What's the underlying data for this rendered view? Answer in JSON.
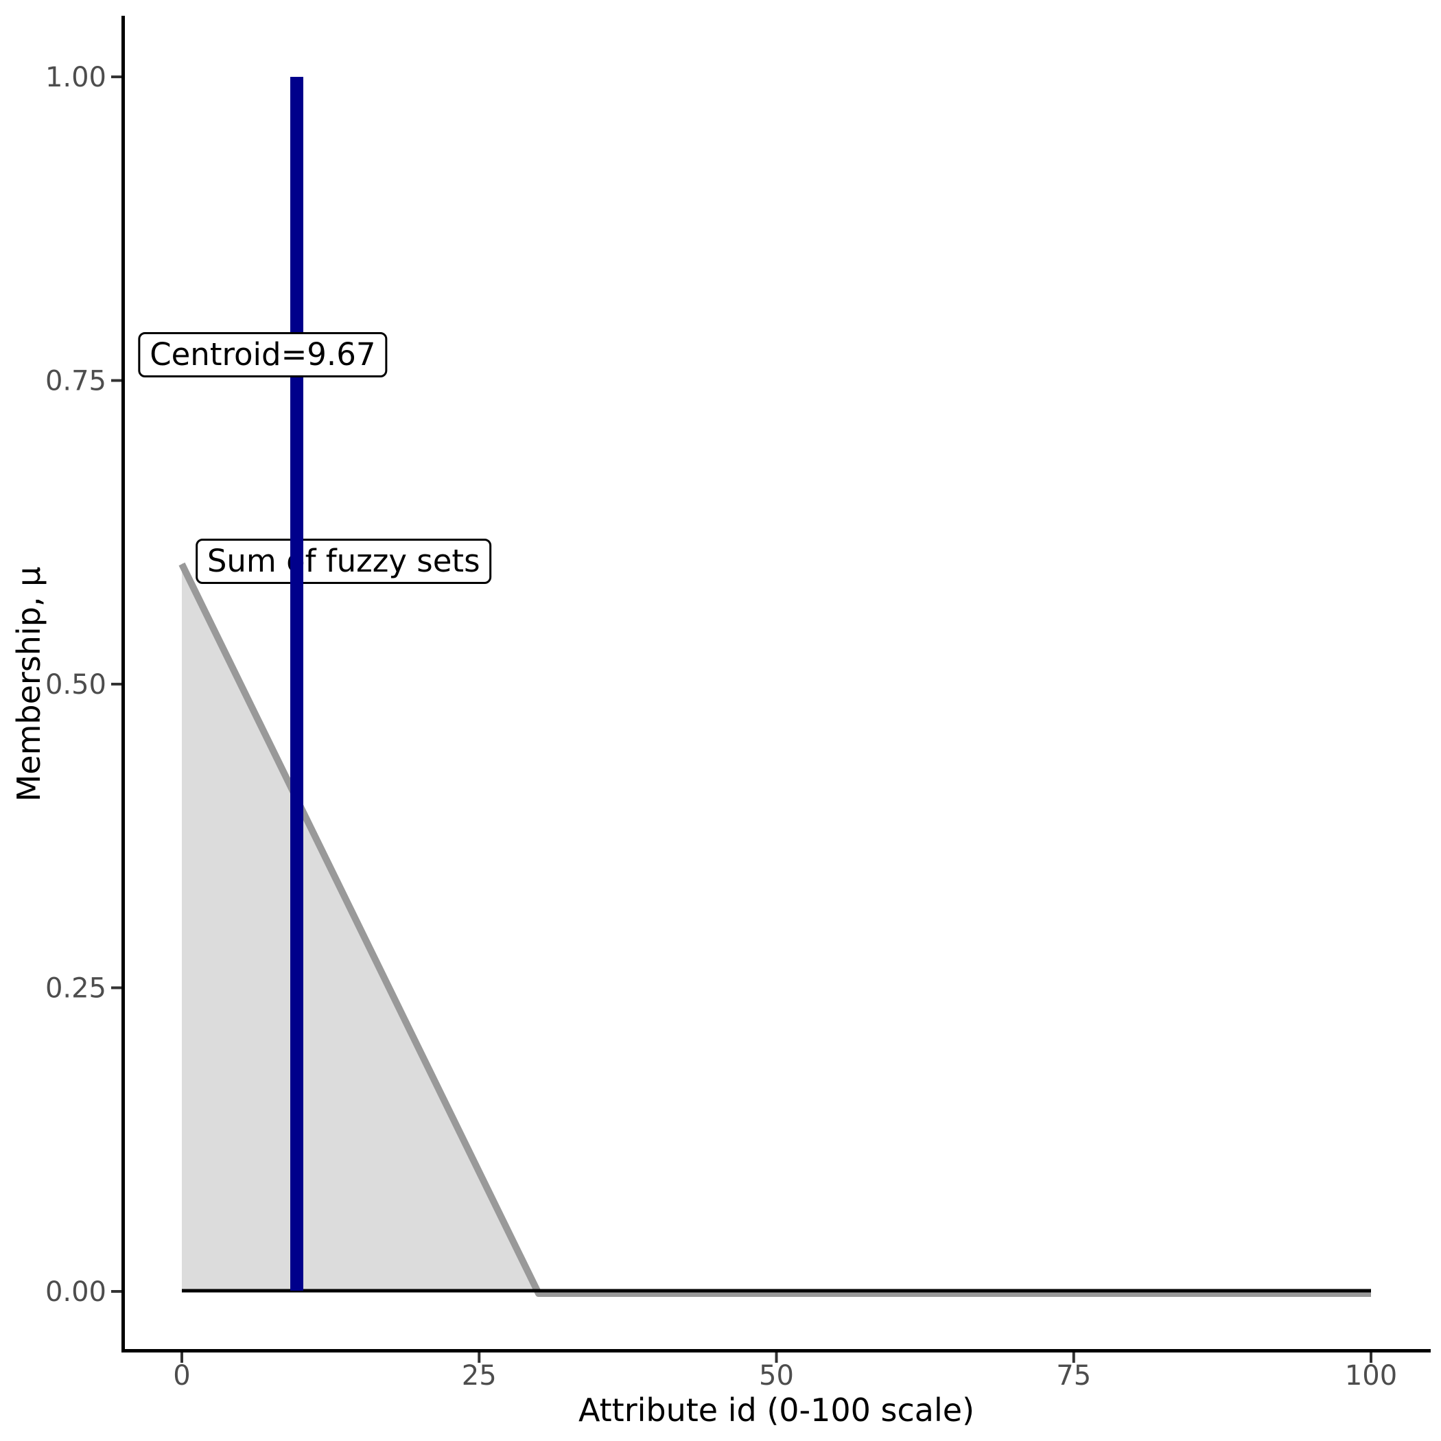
{
  "chart_data": {
    "type": "area",
    "title": "",
    "xlabel": "Attribute id (0-100 scale)",
    "ylabel": "Membership, μ",
    "xlim": [
      0,
      100
    ],
    "ylim": [
      0,
      1
    ],
    "grid": false,
    "legend_position": "none",
    "x_ticks": [
      {
        "value": 0,
        "label": "0"
      },
      {
        "value": 25,
        "label": "25"
      },
      {
        "value": 50,
        "label": "50"
      },
      {
        "value": 75,
        "label": "75"
      },
      {
        "value": 100,
        "label": "100"
      }
    ],
    "y_ticks": [
      {
        "value": 0.0,
        "label": "0.00"
      },
      {
        "value": 0.25,
        "label": "0.25"
      },
      {
        "value": 0.5,
        "label": "0.50"
      },
      {
        "value": 0.75,
        "label": "0.75"
      },
      {
        "value": 1.0,
        "label": "1.00"
      }
    ],
    "area_series": {
      "name": "Sum of fuzzy sets",
      "x": [
        0,
        30,
        100
      ],
      "y": [
        0.6,
        0,
        0
      ],
      "fill_color": "#DCDCDC",
      "line_color": "#999999"
    },
    "baseline": {
      "y": 0,
      "x_start": 0,
      "x_end": 100,
      "color": "#000000"
    },
    "vline": {
      "x": 9.67,
      "y_start": 0,
      "y_end": 1.0,
      "color": "#00008B"
    },
    "annotations": [
      {
        "id": "centroid",
        "text": "Centroid=9.67",
        "x": 6.8,
        "y": 0.771
      },
      {
        "id": "sum",
        "text": "Sum of fuzzy sets",
        "x": 13.6,
        "y": 0.601
      }
    ]
  },
  "colors": {
    "background": "#FFFFFF",
    "axis_line": "#000000",
    "tick_mark": "#333333",
    "tick_label": "#4D4D4D",
    "axis_title": "#000000",
    "label_bg": "#FFFFFF",
    "label_border": "#000000",
    "label_text": "#000000",
    "vline": "#00008B",
    "area_fill": "#DCDCDC",
    "area_line": "#999999"
  }
}
